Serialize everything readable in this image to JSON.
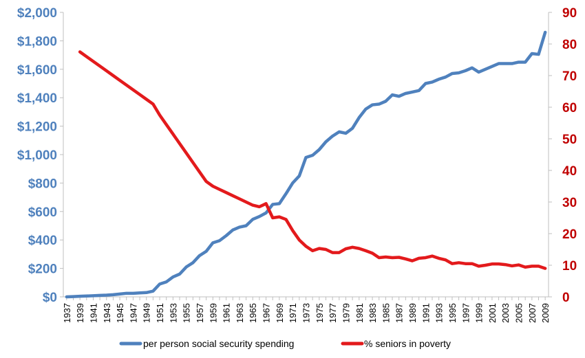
{
  "chart_data": {
    "type": "line",
    "title": "",
    "xlabel": "",
    "ylabel": "",
    "xlim": [
      1937,
      2009
    ],
    "ylim_left": [
      0,
      2000
    ],
    "ylim_right": [
      0,
      90
    ],
    "y_left_ticks": [
      "$0",
      "$200",
      "$400",
      "$600",
      "$800",
      "$1,000",
      "$1,200",
      "$1,400",
      "$1,600",
      "$1,800",
      "$2,000"
    ],
    "y_left_tick_values": [
      0,
      200,
      400,
      600,
      800,
      1000,
      1200,
      1400,
      1600,
      1800,
      2000
    ],
    "y_right_ticks": [
      "0",
      "10",
      "20",
      "30",
      "40",
      "50",
      "60",
      "70",
      "80",
      "90"
    ],
    "y_right_tick_values": [
      0,
      10,
      20,
      30,
      40,
      50,
      60,
      70,
      80,
      90
    ],
    "x_ticks": [
      "1937",
      "1939",
      "1941",
      "1943",
      "1945",
      "1947",
      "1949",
      "1951",
      "1953",
      "1955",
      "1957",
      "1959",
      "1961",
      "1963",
      "1965",
      "1967",
      "1969",
      "1971",
      "1973",
      "1975",
      "1977",
      "1979",
      "1981",
      "1983",
      "1985",
      "1987",
      "1989",
      "1991",
      "1993",
      "1995",
      "1997",
      "1999",
      "2001",
      "2003",
      "2005",
      "2007",
      "2009"
    ],
    "grid": false,
    "legend": "bottom",
    "series": [
      {
        "name": "per person social security spending",
        "axis": "left",
        "color": "#4f81bd",
        "x": [
          1937,
          1938,
          1939,
          1940,
          1941,
          1942,
          1943,
          1944,
          1945,
          1946,
          1947,
          1948,
          1949,
          1950,
          1951,
          1952,
          1953,
          1954,
          1955,
          1956,
          1957,
          1958,
          1959,
          1960,
          1961,
          1962,
          1963,
          1964,
          1965,
          1966,
          1967,
          1968,
          1969,
          1970,
          1971,
          1972,
          1973,
          1974,
          1975,
          1976,
          1977,
          1978,
          1979,
          1980,
          1981,
          1982,
          1983,
          1984,
          1985,
          1986,
          1987,
          1988,
          1989,
          1990,
          1991,
          1992,
          1993,
          1994,
          1995,
          1996,
          1997,
          1998,
          1999,
          2000,
          2001,
          2002,
          2003,
          2004,
          2005,
          2006,
          2007,
          2008,
          2009
        ],
        "y": [
          0,
          2,
          4,
          6,
          8,
          10,
          12,
          15,
          20,
          25,
          25,
          28,
          30,
          40,
          90,
          105,
          140,
          160,
          210,
          240,
          290,
          320,
          380,
          395,
          430,
          470,
          490,
          500,
          545,
          565,
          590,
          650,
          655,
          725,
          800,
          850,
          980,
          995,
          1035,
          1090,
          1130,
          1160,
          1150,
          1185,
          1260,
          1320,
          1350,
          1355,
          1375,
          1420,
          1410,
          1430,
          1440,
          1450,
          1500,
          1510,
          1530,
          1545,
          1570,
          1575,
          1590,
          1610,
          1580,
          1600,
          1620,
          1640,
          1640,
          1640,
          1650,
          1650,
          1710,
          1705,
          1860
        ]
      },
      {
        "name": "% seniors in poverty",
        "axis": "right",
        "color": "#e31a1c",
        "x": [
          1939,
          1940,
          1941,
          1942,
          1943,
          1944,
          1945,
          1946,
          1947,
          1948,
          1949,
          1950,
          1951,
          1952,
          1953,
          1954,
          1955,
          1956,
          1957,
          1958,
          1959,
          1960,
          1961,
          1962,
          1963,
          1964,
          1965,
          1966,
          1967,
          1968,
          1969,
          1970,
          1971,
          1972,
          1973,
          1974,
          1975,
          1976,
          1977,
          1978,
          1979,
          1980,
          1981,
          1982,
          1983,
          1984,
          1985,
          1986,
          1987,
          1988,
          1989,
          1990,
          1991,
          1992,
          1993,
          1994,
          1995,
          1996,
          1997,
          1998,
          1999,
          2000,
          2001,
          2002,
          2003,
          2004,
          2005,
          2006,
          2007,
          2008,
          2009
        ],
        "y": [
          77.5,
          76,
          74.5,
          73,
          71.5,
          70,
          68.5,
          67,
          65.5,
          64,
          62.5,
          61,
          57.5,
          54.5,
          51.5,
          48.5,
          45.5,
          42.5,
          39.5,
          36.5,
          35,
          34,
          33,
          32,
          31,
          30,
          29,
          28.5,
          29.5,
          25,
          25.3,
          24.5,
          21,
          18,
          16,
          14.6,
          15.3,
          15,
          14,
          14,
          15.2,
          15.7,
          15.3,
          14.6,
          13.8,
          12.4,
          12.6,
          12.4,
          12.5,
          12,
          11.4,
          12.2,
          12.4,
          12.9,
          12.2,
          11.7,
          10.5,
          10.8,
          10.5,
          10.5,
          9.7,
          10,
          10.4,
          10.4,
          10.2,
          9.8,
          10.1,
          9.4,
          9.7,
          9.7,
          9
        ]
      }
    ]
  },
  "colors": {
    "left_axis": "#4f81bd",
    "right_axis": "#c00000",
    "blue_series": "#4f81bd",
    "red_series": "#e31a1c"
  }
}
